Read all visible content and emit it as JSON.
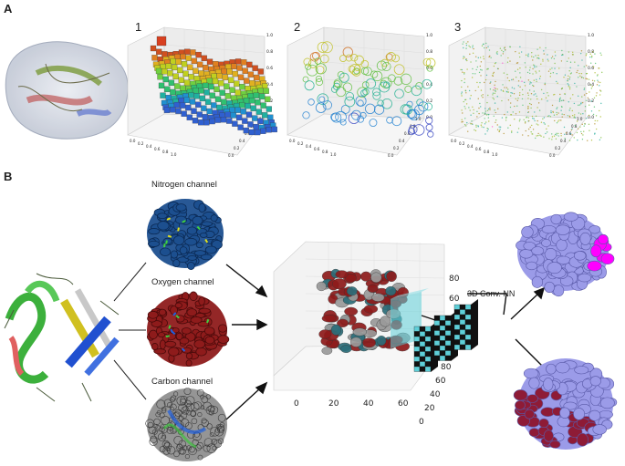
{
  "panel_a": {
    "letter": "A",
    "plots": [
      {
        "num": "1"
      },
      {
        "num": "2"
      },
      {
        "num": "3"
      }
    ],
    "z_ticks": [
      "0.0",
      "0.2",
      "0.4",
      "0.6",
      "0.8",
      "1.0"
    ],
    "xy_ticks": [
      "0.0",
      "0.2",
      "0.4",
      "0.6",
      "0.8",
      "1.0"
    ]
  },
  "panel_b": {
    "letter": "B",
    "channels": [
      {
        "label": "Nitrogen channel",
        "color": "#1f4e8c"
      },
      {
        "label": "Oxygen channel",
        "color": "#a32424"
      },
      {
        "label": "Carbon channel",
        "color": "#555555"
      }
    ],
    "grid_x_ticks": [
      "0",
      "20",
      "40",
      "60"
    ],
    "grid_y_ticks": [
      "0",
      "20",
      "40",
      "60",
      "80"
    ],
    "grid_z_ticks": [
      "60",
      "80"
    ],
    "conv_label": "3D Conv. NN"
  },
  "colors": {
    "nitrogen": "#1c4f8f",
    "oxygen": "#8e1b1b",
    "carbon": "#7a7a7a",
    "pocket": "#ff00ff",
    "surface": "#9b9be8",
    "cyan": "#5fcfd8"
  }
}
